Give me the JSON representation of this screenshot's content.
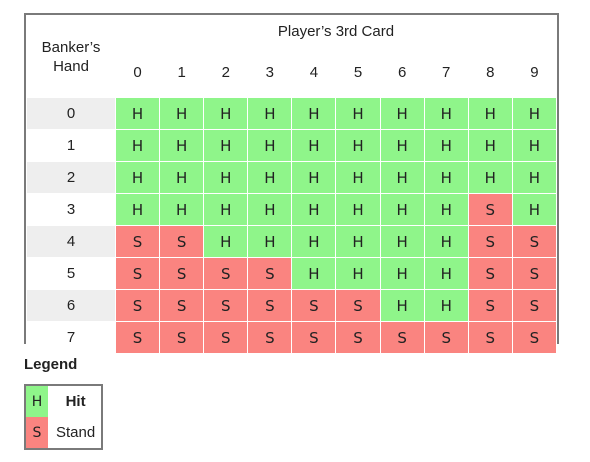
{
  "colors": {
    "hit": "#8ff58a",
    "stand": "#fa8480"
  },
  "header": {
    "banker_label": "Banker’s Hand",
    "player_label": "Player’s 3rd Card",
    "columns": [
      "0",
      "1",
      "2",
      "3",
      "4",
      "5",
      "6",
      "7",
      "8",
      "9"
    ]
  },
  "rows": [
    {
      "banker": "0",
      "cells": [
        "H",
        "H",
        "H",
        "H",
        "H",
        "H",
        "H",
        "H",
        "H",
        "H"
      ]
    },
    {
      "banker": "1",
      "cells": [
        "H",
        "H",
        "H",
        "H",
        "H",
        "H",
        "H",
        "H",
        "H",
        "H"
      ]
    },
    {
      "banker": "2",
      "cells": [
        "H",
        "H",
        "H",
        "H",
        "H",
        "H",
        "H",
        "H",
        "H",
        "H"
      ]
    },
    {
      "banker": "3",
      "cells": [
        "H",
        "H",
        "H",
        "H",
        "H",
        "H",
        "H",
        "H",
        "S",
        "H"
      ]
    },
    {
      "banker": "4",
      "cells": [
        "S",
        "S",
        "H",
        "H",
        "H",
        "H",
        "H",
        "H",
        "S",
        "S"
      ]
    },
    {
      "banker": "5",
      "cells": [
        "S",
        "S",
        "S",
        "S",
        "H",
        "H",
        "H",
        "H",
        "S",
        "S"
      ]
    },
    {
      "banker": "6",
      "cells": [
        "S",
        "S",
        "S",
        "S",
        "S",
        "S",
        "H",
        "H",
        "S",
        "S"
      ]
    },
    {
      "banker": "7",
      "cells": [
        "S",
        "S",
        "S",
        "S",
        "S",
        "S",
        "S",
        "S",
        "S",
        "S"
      ]
    }
  ],
  "legend": {
    "title": "Legend",
    "items": [
      {
        "code": "H",
        "label": "Hit"
      },
      {
        "code": "S",
        "label": "Stand"
      }
    ]
  }
}
